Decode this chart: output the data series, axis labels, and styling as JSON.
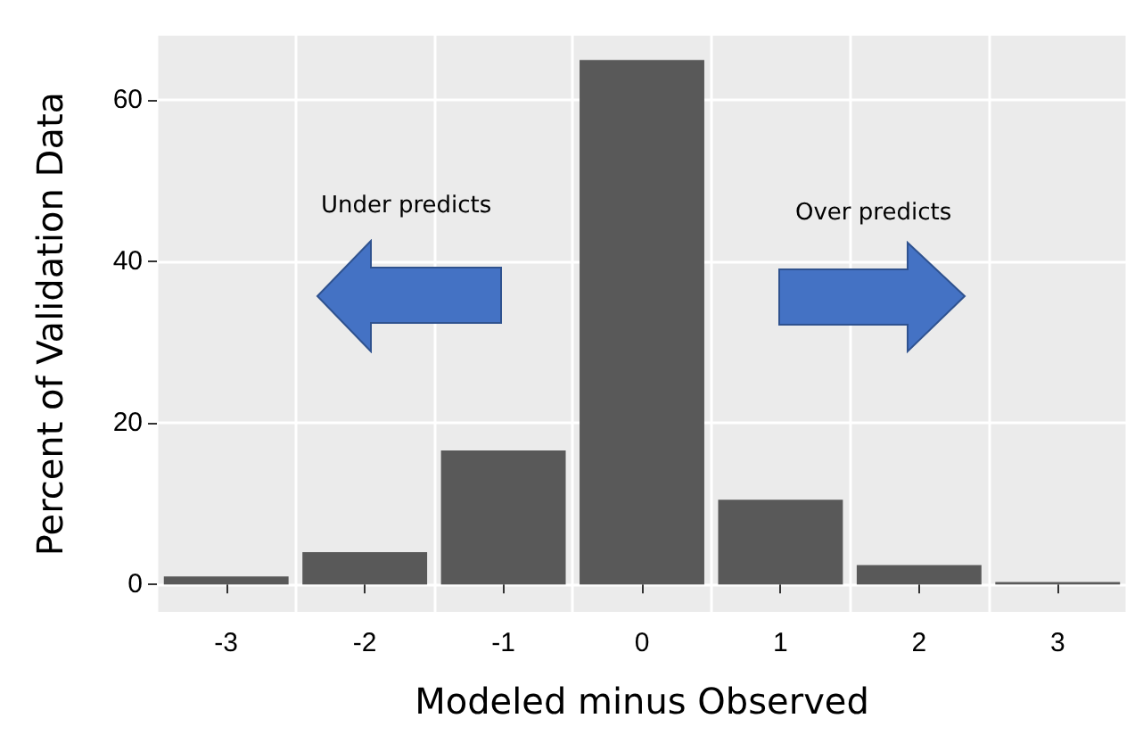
{
  "chart_data": {
    "type": "bar",
    "xlabel": "Modeled minus Observed",
    "ylabel": "Percent of Validation Data",
    "categories": [
      "-3",
      "-2",
      "-1",
      "0",
      "1",
      "2",
      "3"
    ],
    "values": [
      1.0,
      4.0,
      16.6,
      65,
      10.5,
      2.4,
      0.3
    ],
    "color": "#595959",
    "ylim": [
      -3.4,
      68
    ],
    "yticks": [
      0,
      20,
      40,
      60
    ],
    "grid": true,
    "annotations": [
      "Under predicts",
      "Over predicts"
    ]
  }
}
